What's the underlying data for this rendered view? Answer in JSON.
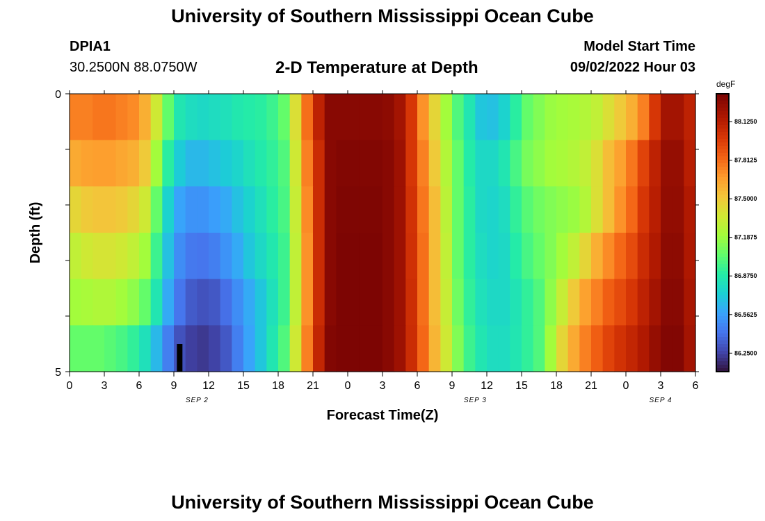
{
  "header": {
    "title": "University of Southern Mississippi Ocean Cube",
    "station": "DPIA1",
    "location": "30.2500N  88.0750W",
    "plot_title": "2-D Temperature at Depth",
    "start_label": "Model Start Time",
    "start_value": "09/02/2022 Hour 03"
  },
  "footer": {
    "title": "University of Southern Mississippi Ocean Cube"
  },
  "chart_data": {
    "type": "heatmap",
    "title": "2-D Temperature at Depth",
    "xlabel": "Forecast Time(Z)",
    "ylabel": "Depth (ft)",
    "x_tick_labels": [
      "0",
      "3",
      "6",
      "9",
      "12",
      "15",
      "18",
      "21",
      "0",
      "3",
      "6",
      "9",
      "12",
      "15",
      "18",
      "21",
      "0",
      "3",
      "6"
    ],
    "date_labels": [
      {
        "label": "SEP 2",
        "hour": 11
      },
      {
        "label": "SEP 3",
        "hour": 35
      },
      {
        "label": "SEP 4",
        "hour": 51
      }
    ],
    "y_tick_labels": [
      "0",
      "5"
    ],
    "ylim": [
      0,
      5
    ],
    "x_hours": [
      0,
      1,
      2,
      3,
      4,
      5,
      6,
      7,
      8,
      9,
      10,
      11,
      12,
      13,
      14,
      15,
      16,
      17,
      18,
      19,
      20,
      21,
      22,
      23,
      24,
      25,
      26,
      27,
      28,
      29,
      30,
      31,
      32,
      33,
      34,
      35,
      36,
      37,
      38,
      39,
      40,
      41,
      42,
      43,
      44,
      45,
      46,
      47,
      48,
      49,
      50,
      51,
      52,
      53,
      54
    ],
    "depth_levels": [
      0,
      1,
      2,
      3,
      4,
      5
    ],
    "colorbar": {
      "unit": "degF",
      "min": 86.1,
      "max": 88.35,
      "tick_labels": [
        "88.1250",
        "87.8125",
        "87.5000",
        "87.1875",
        "86.8750",
        "86.5625",
        "86.2500"
      ],
      "tick_values": [
        88.125,
        87.8125,
        87.5,
        87.1875,
        86.875,
        86.5625,
        86.25
      ]
    },
    "values": [
      [
        87.75,
        87.75,
        87.78,
        87.78,
        87.75,
        87.72,
        87.6,
        87.35,
        87.05,
        86.85,
        86.8,
        86.78,
        86.8,
        86.82,
        86.86,
        86.88,
        86.9,
        86.95,
        87.05,
        87.4,
        87.8,
        88.1,
        88.3,
        88.3,
        88.3,
        88.3,
        88.3,
        88.28,
        88.2,
        88.0,
        87.7,
        87.45,
        87.2,
        87.0,
        86.85,
        86.7,
        86.68,
        86.75,
        86.9,
        87.05,
        87.12,
        87.18,
        87.2,
        87.22,
        87.25,
        87.3,
        87.4,
        87.5,
        87.6,
        87.75,
        88.0,
        88.2,
        88.2,
        88.1,
        87.95
      ],
      [
        87.62,
        87.65,
        87.66,
        87.66,
        87.63,
        87.6,
        87.5,
        87.2,
        86.9,
        86.72,
        86.65,
        86.65,
        86.68,
        86.72,
        86.76,
        86.82,
        86.87,
        86.92,
        87.0,
        87.35,
        87.75,
        88.05,
        88.3,
        88.32,
        88.32,
        88.32,
        88.32,
        88.3,
        88.22,
        88.0,
        87.75,
        87.5,
        87.25,
        87.05,
        86.88,
        86.78,
        86.78,
        86.85,
        86.98,
        87.1,
        87.15,
        87.2,
        87.22,
        87.25,
        87.3,
        87.4,
        87.55,
        87.65,
        87.78,
        87.95,
        88.1,
        88.25,
        88.25,
        88.12,
        87.95
      ],
      [
        87.45,
        87.5,
        87.52,
        87.52,
        87.5,
        87.45,
        87.35,
        87.05,
        86.75,
        86.58,
        86.52,
        86.52,
        86.56,
        86.6,
        86.68,
        86.75,
        86.82,
        86.9,
        86.98,
        87.32,
        87.72,
        88.05,
        88.3,
        88.33,
        88.33,
        88.33,
        88.33,
        88.3,
        88.22,
        88.02,
        87.78,
        87.55,
        87.28,
        87.05,
        86.9,
        86.78,
        86.76,
        86.8,
        86.92,
        87.02,
        87.08,
        87.12,
        87.15,
        87.18,
        87.25,
        87.4,
        87.55,
        87.7,
        87.82,
        88.0,
        88.12,
        88.26,
        88.26,
        88.15,
        87.98
      ],
      [
        87.3,
        87.35,
        87.38,
        87.38,
        87.35,
        87.3,
        87.2,
        86.95,
        86.68,
        86.5,
        86.43,
        86.42,
        86.45,
        86.52,
        86.6,
        86.7,
        86.78,
        86.86,
        86.95,
        87.3,
        87.7,
        88.05,
        88.3,
        88.34,
        88.34,
        88.34,
        88.34,
        88.3,
        88.22,
        88.03,
        87.8,
        87.55,
        87.3,
        87.05,
        86.9,
        86.8,
        86.76,
        86.78,
        86.88,
        86.98,
        87.05,
        87.12,
        87.2,
        87.3,
        87.45,
        87.6,
        87.72,
        87.82,
        87.92,
        88.05,
        88.15,
        88.28,
        88.28,
        88.16,
        88.0
      ],
      [
        87.2,
        87.22,
        87.24,
        87.24,
        87.2,
        87.15,
        87.05,
        86.85,
        86.6,
        86.42,
        86.33,
        86.3,
        86.32,
        86.4,
        86.5,
        86.6,
        86.7,
        86.82,
        86.95,
        87.3,
        87.7,
        88.05,
        88.3,
        88.34,
        88.34,
        88.34,
        88.34,
        88.3,
        88.22,
        88.04,
        87.8,
        87.55,
        87.32,
        87.08,
        86.92,
        86.82,
        86.78,
        86.78,
        86.84,
        86.92,
        87.0,
        87.15,
        87.32,
        87.5,
        87.65,
        87.75,
        87.85,
        87.92,
        88.0,
        88.1,
        88.2,
        88.3,
        88.3,
        88.18,
        88.02
      ],
      [
        87.05,
        87.05,
        87.05,
        87.02,
        86.98,
        86.92,
        86.82,
        86.65,
        86.45,
        86.3,
        86.24,
        86.22,
        86.25,
        86.32,
        86.45,
        86.58,
        86.7,
        86.85,
        87.0,
        87.35,
        87.75,
        88.08,
        88.32,
        88.34,
        88.34,
        88.34,
        88.34,
        88.3,
        88.22,
        88.05,
        87.82,
        87.58,
        87.35,
        87.12,
        86.95,
        86.85,
        86.8,
        86.8,
        86.85,
        86.92,
        87.0,
        87.2,
        87.45,
        87.62,
        87.75,
        87.85,
        87.95,
        88.02,
        88.08,
        88.15,
        88.25,
        88.32,
        88.32,
        88.2,
        88.05
      ]
    ],
    "marker": {
      "hour": 9.5,
      "depth": 5,
      "note": "black bar at bottom"
    },
    "grid": false
  }
}
